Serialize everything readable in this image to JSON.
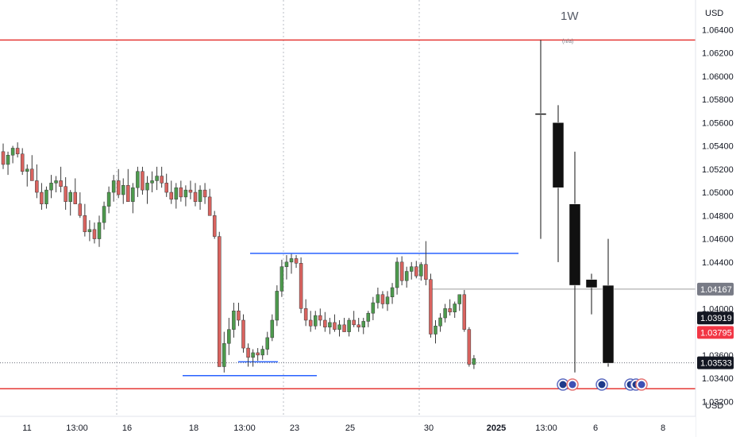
{
  "toolbar": {
    "currency_top": "USD",
    "currency_bottom": "USD"
  },
  "overlay": {
    "timeframe": "1W",
    "subtitle": "(n/a)"
  },
  "colors": {
    "up": "#4d9a4d",
    "down": "#d9635f",
    "weekly": "#111111",
    "resistance": "#e53935",
    "range": "#2962ff",
    "guide": "#9e9e9e"
  },
  "chart_data": {
    "type": "candlestick",
    "ylim": [
      1.031,
      1.066
    ],
    "y_ticks": [
      "1.06400",
      "1.06200",
      "1.06000",
      "1.05800",
      "1.05600",
      "1.05400",
      "1.05200",
      "1.05000",
      "1.04800",
      "1.04600",
      "1.04400",
      "1.04000",
      "1.03600",
      "1.03400",
      "1.03200"
    ],
    "x_ticks": [
      "11",
      "13:00",
      "16",
      "18",
      "13:00",
      "23",
      "25",
      "30",
      "2025",
      "13:00",
      "6",
      "8"
    ],
    "price_labels": [
      {
        "text": "1.04167",
        "value": 1.04167,
        "color": "#787b86"
      },
      {
        "text": "1.03919",
        "value": 1.03919,
        "color": "#131722"
      },
      {
        "text": "1.03795",
        "value": 1.03795,
        "color": "#f23645"
      },
      {
        "text": "1.03533",
        "value": 1.03533,
        "color": "#131722"
      }
    ],
    "horizontal_levels": [
      {
        "name": "resistance",
        "value": 1.0631
      },
      {
        "name": "support",
        "value": 1.0331
      }
    ],
    "range_high": 1.04475,
    "range_low": 1.03423,
    "range_low_inner": 1.03542,
    "current_price": 1.03533,
    "reference_price": 1.04167,
    "hourly_candles": [
      [
        1.0535,
        1.0542,
        1.052,
        1.0524
      ],
      [
        1.0524,
        1.0535,
        1.0515,
        1.0532
      ],
      [
        1.0532,
        1.054,
        1.0525,
        1.0538
      ],
      [
        1.0538,
        1.0543,
        1.053,
        1.0533
      ],
      [
        1.0533,
        1.0538,
        1.0515,
        1.0518
      ],
      [
        1.0518,
        1.0524,
        1.0505,
        1.052
      ],
      [
        1.052,
        1.0532,
        1.0512,
        1.051
      ],
      [
        1.051,
        1.0524,
        1.0495,
        1.05
      ],
      [
        1.05,
        1.0508,
        1.0485,
        1.049
      ],
      [
        1.049,
        1.0505,
        1.0486,
        1.0502
      ],
      [
        1.0502,
        1.0515,
        1.0495,
        1.0508
      ],
      [
        1.0508,
        1.0514,
        1.05,
        1.051
      ],
      [
        1.051,
        1.0522,
        1.05,
        1.0505
      ],
      [
        1.0505,
        1.0513,
        1.0485,
        1.0492
      ],
      [
        1.0492,
        1.0502,
        1.048,
        1.05
      ],
      [
        1.05,
        1.0512,
        1.0494,
        1.049
      ],
      [
        1.049,
        1.05,
        1.0478,
        1.048
      ],
      [
        1.048,
        1.049,
        1.0462,
        1.0466
      ],
      [
        1.0466,
        1.0476,
        1.0458,
        1.0468
      ],
      [
        1.0468,
        1.0474,
        1.0456,
        1.046
      ],
      [
        1.046,
        1.048,
        1.0453,
        1.0474
      ],
      [
        1.0474,
        1.0492,
        1.0468,
        1.0488
      ],
      [
        1.0488,
        1.0505,
        1.0482,
        1.05
      ],
      [
        1.05,
        1.0515,
        1.0492,
        1.051
      ],
      [
        1.051,
        1.052,
        1.0495,
        1.0498
      ],
      [
        1.0498,
        1.0512,
        1.049,
        1.0506
      ],
      [
        1.0506,
        1.052,
        1.05,
        1.0492
      ],
      [
        1.0492,
        1.0508,
        1.0482,
        1.0504
      ],
      [
        1.0504,
        1.0522,
        1.0496,
        1.0518
      ],
      [
        1.0518,
        1.0522,
        1.0498,
        1.0502
      ],
      [
        1.0502,
        1.0514,
        1.049,
        1.0508
      ],
      [
        1.0508,
        1.0518,
        1.05,
        1.051
      ],
      [
        1.051,
        1.0522,
        1.0502,
        1.0514
      ],
      [
        1.0514,
        1.0522,
        1.0504,
        1.0508
      ],
      [
        1.0508,
        1.0516,
        1.0496,
        1.05
      ],
      [
        1.05,
        1.051,
        1.049,
        1.0494
      ],
      [
        1.0494,
        1.0508,
        1.0486,
        1.0504
      ],
      [
        1.0504,
        1.051,
        1.0492,
        1.0496
      ],
      [
        1.0496,
        1.0506,
        1.0488,
        1.0502
      ],
      [
        1.0502,
        1.051,
        1.0494,
        1.05
      ],
      [
        1.05,
        1.0508,
        1.0488,
        1.0492
      ],
      [
        1.0492,
        1.0506,
        1.0485,
        1.0502
      ],
      [
        1.0502,
        1.0508,
        1.049,
        1.0496
      ],
      [
        1.0496,
        1.0503,
        1.0484,
        1.048
      ],
      [
        1.048,
        1.0484,
        1.046,
        1.0462
      ],
      [
        1.0462,
        1.0466,
        1.035,
        1.035
      ],
      [
        1.035,
        1.038,
        1.0345,
        1.037
      ],
      [
        1.037,
        1.0392,
        1.036,
        1.0382
      ],
      [
        1.0382,
        1.0405,
        1.0375,
        1.0398
      ],
      [
        1.0398,
        1.0405,
        1.0385,
        1.039
      ],
      [
        1.039,
        1.0395,
        1.0362,
        1.0366
      ],
      [
        1.0366,
        1.037,
        1.035,
        1.0358
      ],
      [
        1.0358,
        1.0365,
        1.035,
        1.0362
      ],
      [
        1.0362,
        1.0366,
        1.0355,
        1.036
      ],
      [
        1.036,
        1.0368,
        1.0356,
        1.0365
      ],
      [
        1.0365,
        1.038,
        1.036,
        1.0375
      ],
      [
        1.0375,
        1.0395,
        1.0372,
        1.039
      ],
      [
        1.039,
        1.042,
        1.0385,
        1.0415
      ],
      [
        1.0415,
        1.0442,
        1.041,
        1.0436
      ],
      [
        1.0436,
        1.0446,
        1.0425,
        1.044
      ],
      [
        1.044,
        1.0447,
        1.043,
        1.0443
      ],
      [
        1.0443,
        1.0446,
        1.0435,
        1.0439
      ],
      [
        1.0439,
        1.0444,
        1.0396,
        1.04
      ],
      [
        1.04,
        1.0408,
        1.0385,
        1.039
      ],
      [
        1.039,
        1.0398,
        1.038,
        1.0385
      ],
      [
        1.0385,
        1.0398,
        1.0382,
        1.0394
      ],
      [
        1.0394,
        1.04,
        1.0385,
        1.039
      ],
      [
        1.039,
        1.0397,
        1.038,
        1.0384
      ],
      [
        1.0384,
        1.0392,
        1.0378,
        1.0388
      ],
      [
        1.0388,
        1.0395,
        1.038,
        1.0382
      ],
      [
        1.0382,
        1.039,
        1.0376,
        1.0386
      ],
      [
        1.0386,
        1.0392,
        1.038,
        1.038
      ],
      [
        1.038,
        1.0392,
        1.0376,
        1.039
      ],
      [
        1.039,
        1.0398,
        1.0384,
        1.0386
      ],
      [
        1.0386,
        1.0392,
        1.038,
        1.0384
      ],
      [
        1.0384,
        1.0392,
        1.0378,
        1.0389
      ],
      [
        1.0389,
        1.0398,
        1.0384,
        1.0396
      ],
      [
        1.0396,
        1.041,
        1.039,
        1.0405
      ],
      [
        1.0405,
        1.0418,
        1.04,
        1.0412
      ],
      [
        1.0412,
        1.0415,
        1.04,
        1.0404
      ],
      [
        1.0404,
        1.0415,
        1.0398,
        1.041
      ],
      [
        1.041,
        1.0422,
        1.0404,
        1.0418
      ],
      [
        1.0418,
        1.0444,
        1.0412,
        1.044
      ],
      [
        1.044,
        1.0445,
        1.042,
        1.0424
      ],
      [
        1.0424,
        1.0436,
        1.0418,
        1.0432
      ],
      [
        1.0432,
        1.044,
        1.0425,
        1.0436
      ],
      [
        1.0436,
        1.0441,
        1.0426,
        1.0428
      ],
      [
        1.0428,
        1.044,
        1.0424,
        1.0438
      ],
      [
        1.0438,
        1.0458,
        1.042,
        1.0425
      ],
      [
        1.0425,
        1.043,
        1.0375,
        1.0378
      ],
      [
        1.0378,
        1.039,
        1.037,
        1.0385
      ],
      [
        1.0385,
        1.0396,
        1.038,
        1.0392
      ],
      [
        1.0392,
        1.0404,
        1.0388,
        1.04
      ],
      [
        1.04,
        1.0408,
        1.0394,
        1.0397
      ],
      [
        1.0397,
        1.0406,
        1.0392,
        1.0404
      ],
      [
        1.0404,
        1.0412,
        1.0398,
        1.0412
      ],
      [
        1.0412,
        1.0416,
        1.038,
        1.0382
      ],
      [
        1.0382,
        1.0384,
        1.035,
        1.0352
      ],
      [
        1.0352,
        1.036,
        1.0348,
        1.0357
      ]
    ],
    "weekly_candles": [
      [
        1.0568,
        1.0631,
        1.046,
        1.0568
      ],
      [
        1.056,
        1.0575,
        1.044,
        1.0504
      ],
      [
        1.049,
        1.0535,
        1.0345,
        1.042
      ],
      [
        1.0425,
        1.043,
        1.0395,
        1.0418
      ],
      [
        1.042,
        1.046,
        1.035,
        1.0353
      ]
    ]
  }
}
